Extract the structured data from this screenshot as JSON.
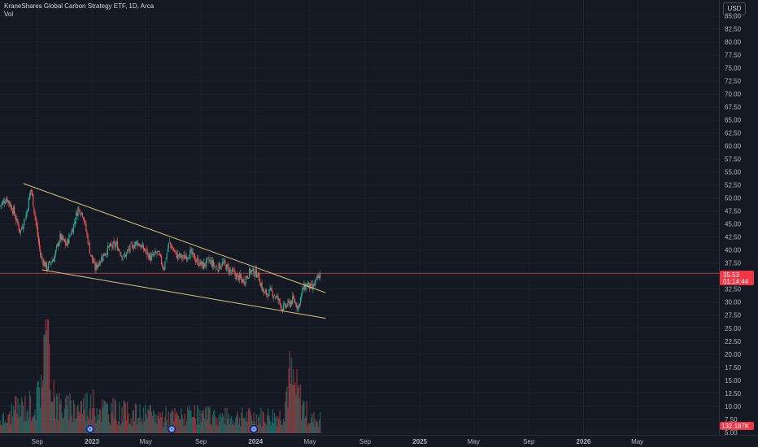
{
  "legend": {
    "title": "KraneShares Global Carbon Strategy ETF, 1D, Arca",
    "vol_label": "Vol"
  },
  "currency": "USD",
  "price_label": {
    "price": "35.53",
    "countdown": "01:14:44"
  },
  "volume_label": "132.187K",
  "colors": {
    "background": "#141823",
    "up": "#26a69a",
    "down": "#ef5350",
    "trendline": "#d9c37a",
    "grid": "#1e2230",
    "axis_text": "#b2b5be",
    "price_line": "#c2404a"
  },
  "chart_data": {
    "type": "candlestick",
    "title": "KraneShares Global Carbon Strategy ETF, 1D, Arca",
    "y_ticks": [
      85,
      82.5,
      80,
      77.5,
      75,
      72.5,
      70,
      67.5,
      65,
      62.5,
      60,
      57.5,
      55,
      52.5,
      50,
      47.5,
      45,
      42.5,
      40,
      37.5,
      35,
      32.5,
      30,
      27.5,
      25,
      22.5,
      20,
      17.5,
      15,
      12.5,
      10,
      7.5,
      5
    ],
    "y_tick_labels": [
      "85.00",
      "82.50",
      "80.00",
      "77.50",
      "75.00",
      "72.50",
      "70.00",
      "67.50",
      "65.00",
      "62.50",
      "60.00",
      "57.50",
      "55.00",
      "52.50",
      "50.00",
      "47.50",
      "45.00",
      "42.50",
      "40.00",
      "37.50",
      "35.00",
      "32.50",
      "30.00",
      "27.50",
      "25.00",
      "22.50",
      "20.00",
      "17.50",
      "15.00",
      "12.50",
      "10.00",
      "7.50",
      "5.00"
    ],
    "ylim": [
      4.5,
      86.5
    ],
    "x_ticks": [
      {
        "label": "Sep",
        "date": "2022-09-01"
      },
      {
        "label": "2023",
        "date": "2023-01-01"
      },
      {
        "label": "May",
        "date": "2023-05-01"
      },
      {
        "label": "Sep",
        "date": "2023-09-01"
      },
      {
        "label": "2024",
        "date": "2024-01-01"
      },
      {
        "label": "May",
        "date": "2024-05-01"
      },
      {
        "label": "Sep",
        "date": "2024-09-01"
      },
      {
        "label": "2025",
        "date": "2025-01-01"
      },
      {
        "label": "May",
        "date": "2025-05-01"
      },
      {
        "label": "Sep",
        "date": "2025-09-01"
      },
      {
        "label": "2026",
        "date": "2026-01-01"
      },
      {
        "label": "May",
        "date": "2026-05-01"
      }
    ],
    "xlim": [
      "2022-06-10",
      "2026-10-30"
    ],
    "last_price": 35.53,
    "price_series": [
      {
        "date": "2022-06-10",
        "close": 48.5
      },
      {
        "date": "2022-06-25",
        "close": 50.0
      },
      {
        "date": "2022-07-10",
        "close": 47.5
      },
      {
        "date": "2022-07-25",
        "close": 43.5
      },
      {
        "date": "2022-08-08",
        "close": 47.0
      },
      {
        "date": "2022-08-18",
        "close": 52.0
      },
      {
        "date": "2022-08-28",
        "close": 46.0
      },
      {
        "date": "2022-09-08",
        "close": 39.0
      },
      {
        "date": "2022-09-22",
        "close": 36.5
      },
      {
        "date": "2022-10-08",
        "close": 38.5
      },
      {
        "date": "2022-10-22",
        "close": 42.5
      },
      {
        "date": "2022-11-05",
        "close": 41.0
      },
      {
        "date": "2022-11-20",
        "close": 44.5
      },
      {
        "date": "2022-12-01",
        "close": 48.0
      },
      {
        "date": "2022-12-12",
        "close": 47.0
      },
      {
        "date": "2022-12-28",
        "close": 39.5
      },
      {
        "date": "2023-01-08",
        "close": 36.5
      },
      {
        "date": "2023-01-22",
        "close": 38.5
      },
      {
        "date": "2023-02-08",
        "close": 40.5
      },
      {
        "date": "2023-02-25",
        "close": 41.0
      },
      {
        "date": "2023-03-12",
        "close": 38.5
      },
      {
        "date": "2023-03-28",
        "close": 40.5
      },
      {
        "date": "2023-04-12",
        "close": 41.5
      },
      {
        "date": "2023-04-28",
        "close": 40.0
      },
      {
        "date": "2023-05-12",
        "close": 38.5
      },
      {
        "date": "2023-05-28",
        "close": 39.5
      },
      {
        "date": "2023-06-10",
        "close": 36.5
      },
      {
        "date": "2023-06-22",
        "close": 41.5
      },
      {
        "date": "2023-07-08",
        "close": 39.0
      },
      {
        "date": "2023-07-25",
        "close": 38.5
      },
      {
        "date": "2023-08-08",
        "close": 39.5
      },
      {
        "date": "2023-08-22",
        "close": 38.0
      },
      {
        "date": "2023-09-05",
        "close": 37.0
      },
      {
        "date": "2023-09-20",
        "close": 38.0
      },
      {
        "date": "2023-10-05",
        "close": 36.5
      },
      {
        "date": "2023-10-20",
        "close": 37.5
      },
      {
        "date": "2023-11-05",
        "close": 36.0
      },
      {
        "date": "2023-11-20",
        "close": 35.0
      },
      {
        "date": "2023-12-05",
        "close": 34.0
      },
      {
        "date": "2023-12-20",
        "close": 36.0
      },
      {
        "date": "2024-01-05",
        "close": 35.5
      },
      {
        "date": "2024-01-20",
        "close": 31.5
      },
      {
        "date": "2024-02-05",
        "close": 32.0
      },
      {
        "date": "2024-02-20",
        "close": 30.5
      },
      {
        "date": "2024-03-01",
        "close": 28.8
      },
      {
        "date": "2024-03-12",
        "close": 29.5
      },
      {
        "date": "2024-03-25",
        "close": 30.5
      },
      {
        "date": "2024-04-05",
        "close": 29.0
      },
      {
        "date": "2024-04-15",
        "close": 32.5
      },
      {
        "date": "2024-04-25",
        "close": 33.5
      },
      {
        "date": "2024-05-05",
        "close": 32.5
      },
      {
        "date": "2024-05-15",
        "close": 34.0
      },
      {
        "date": "2024-05-25",
        "close": 35.53
      }
    ],
    "trendlines": [
      {
        "name": "upper",
        "start": {
          "date": "2022-08-01",
          "value": 52.8
        },
        "end": {
          "date": "2024-06-05",
          "value": 31.8
        }
      },
      {
        "name": "lower",
        "start": {
          "date": "2022-09-12",
          "value": 36.2
        },
        "end": {
          "date": "2024-06-05",
          "value": 26.9
        }
      }
    ],
    "volume_series": [
      {
        "date": "2022-07-01",
        "value": 30
      },
      {
        "date": "2022-08-01",
        "value": 38
      },
      {
        "date": "2022-09-01",
        "value": 45
      },
      {
        "date": "2022-09-20",
        "value": 140
      },
      {
        "date": "2022-10-15",
        "value": 40
      },
      {
        "date": "2022-11-15",
        "value": 35
      },
      {
        "date": "2022-12-15",
        "value": 42
      },
      {
        "date": "2023-01-15",
        "value": 38
      },
      {
        "date": "2023-03-01",
        "value": 30
      },
      {
        "date": "2023-05-01",
        "value": 26
      },
      {
        "date": "2023-07-01",
        "value": 24
      },
      {
        "date": "2023-09-01",
        "value": 25
      },
      {
        "date": "2023-11-01",
        "value": 23
      },
      {
        "date": "2024-01-01",
        "value": 24
      },
      {
        "date": "2024-03-01",
        "value": 26
      },
      {
        "date": "2024-03-15",
        "value": 80
      },
      {
        "date": "2024-05-01",
        "value": 20
      }
    ],
    "volume_unit": "thousands"
  }
}
